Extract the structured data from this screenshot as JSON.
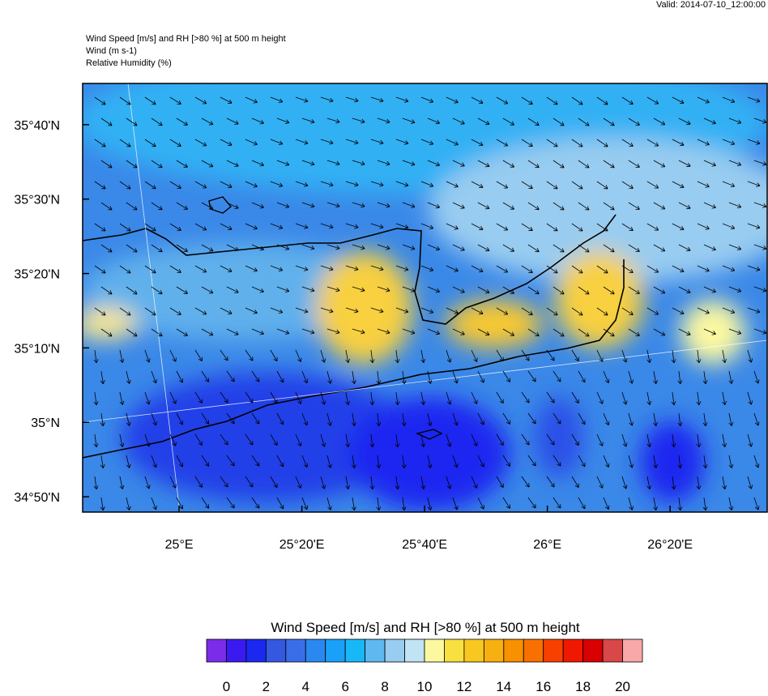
{
  "valid": "Valid: 2014-07-10_12:00:00",
  "header": {
    "lines": [
      "Wind Speed [m/s] and RH [>80 %] at 500 m height",
      "Wind   (m s-1)",
      "Relative Humidity   (%)"
    ]
  },
  "map": {
    "xlim": [
      24.738,
      26.597
    ],
    "ylim": [
      34.799,
      35.759
    ],
    "xticks": [
      {
        "value": 25,
        "label": "25°E"
      },
      {
        "value": 25.3333,
        "label": "25°20'E"
      },
      {
        "value": 25.6667,
        "label": "25°40'E"
      },
      {
        "value": 26,
        "label": "26°E"
      },
      {
        "value": 26.3333,
        "label": "26°20'E"
      }
    ],
    "yticks": [
      {
        "value": 34.8333,
        "label": "34°50'N"
      },
      {
        "value": 35,
        "label": "35°N"
      },
      {
        "value": 35.1667,
        "label": "35°10'N"
      },
      {
        "value": 35.3333,
        "label": "35°20'N"
      },
      {
        "value": 35.5,
        "label": "35°30'N"
      },
      {
        "value": 35.6667,
        "label": "35°40'N"
      }
    ]
  },
  "colorbar": {
    "title": "Wind Speed [m/s] and RH [>80 %] at 500 m height",
    "lim": [
      -1,
      21
    ],
    "ticks": [
      0,
      2,
      4,
      6,
      8,
      10,
      12,
      14,
      16,
      18,
      20
    ],
    "colors": [
      "#7a2ce8",
      "#3a1af0",
      "#1a28f0",
      "#3558e0",
      "#3a6ee8",
      "#2a88f0",
      "#1aa0f8",
      "#18b8f8",
      "#60b8f0",
      "#98ccf0",
      "#c0e4f4",
      "#fcf8a0",
      "#f8e040",
      "#f8c820",
      "#f8b010",
      "#f89000",
      "#f87000",
      "#f84000",
      "#f01800",
      "#d80000",
      "#d84848",
      "#f8a8a8"
    ]
  }
}
